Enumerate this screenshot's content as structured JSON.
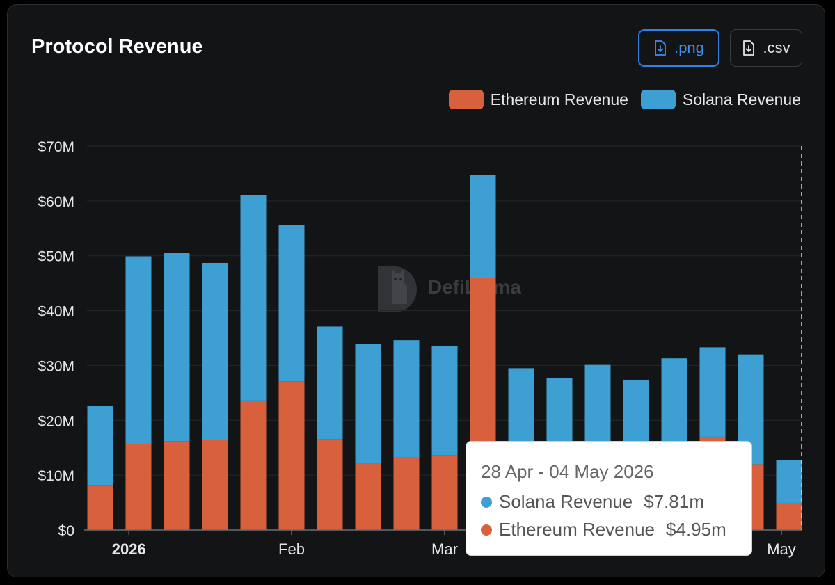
{
  "header": {
    "title": "Protocol Revenue",
    "png_label": ".png",
    "csv_label": ".csv"
  },
  "watermark": {
    "text": "DefiLlama"
  },
  "colors": {
    "ethereum": "#d9603c",
    "solana": "#3ea0d2",
    "accent": "#2f7fe6"
  },
  "chart_data": {
    "type": "bar",
    "stacked": true,
    "x_ticks": [
      {
        "label": "2026",
        "index": 0.75,
        "bold": true
      },
      {
        "label": "Feb",
        "index": 5.0,
        "bold": false
      },
      {
        "label": "Mar",
        "index": 9.0,
        "bold": false
      },
      {
        "label": "May",
        "index": 17.8,
        "bold": false
      }
    ],
    "y_ticks": [
      "$0",
      "$10M",
      "$20M",
      "$30M",
      "$40M",
      "$50M",
      "$60M",
      "$70M"
    ],
    "ylim": [
      0,
      70
    ],
    "grid": true,
    "legend_position": "top-right",
    "series": [
      {
        "name": "Ethereum Revenue",
        "color": "#d9603c",
        "values": [
          8.2,
          15.6,
          16.2,
          16.4,
          23.6,
          27.1,
          16.6,
          12.1,
          13.2,
          13.6,
          46.0,
          10.5,
          9.5,
          10.0,
          9.0,
          10.0,
          17.0,
          12.0,
          4.95
        ]
      },
      {
        "name": "Solana Revenue",
        "color": "#3ea0d2",
        "values": [
          14.5,
          34.3,
          34.3,
          32.3,
          37.4,
          28.5,
          20.5,
          21.8,
          21.4,
          19.9,
          18.7,
          19.0,
          18.2,
          20.1,
          18.4,
          21.3,
          16.3,
          20.0,
          7.81
        ]
      }
    ]
  },
  "tooltip": {
    "date": "28 Apr - 04 May 2026",
    "rows": [
      {
        "label": "Solana Revenue",
        "value": "$7.81m",
        "color": "#3ea0d2"
      },
      {
        "label": "Ethereum Revenue",
        "value": "$4.95m",
        "color": "#d9603c"
      }
    ]
  }
}
